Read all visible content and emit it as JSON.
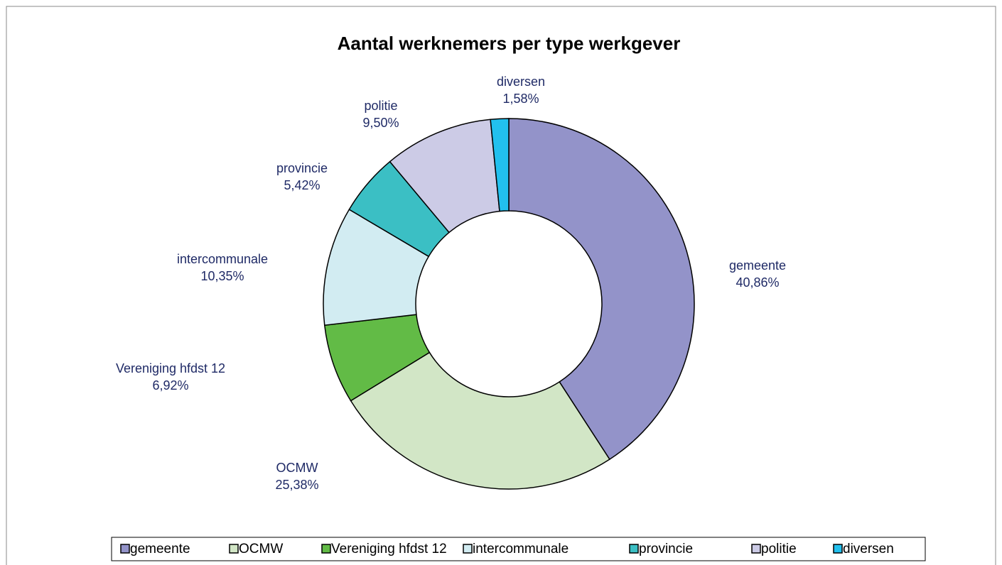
{
  "chart_data": {
    "type": "donut",
    "title": "Aantal werknemers per type werkgever",
    "categories": [
      "gemeente",
      "OCMW",
      "Vereniging hfdst 12",
      "intercommunale",
      "provincie",
      "politie",
      "diversen"
    ],
    "values": [
      40.86,
      25.38,
      6.92,
      10.35,
      5.42,
      9.5,
      1.58
    ],
    "value_labels": [
      "40,86%",
      "25,38%",
      "6,92%",
      "10,35%",
      "5,42%",
      "9,50%",
      "1,58%"
    ],
    "colors": [
      "#9393c9",
      "#d2e6c6",
      "#62bb46",
      "#d2ecf2",
      "#3bbfc4",
      "#cccbe6",
      "#22c0ee"
    ],
    "legend": "bottom"
  }
}
